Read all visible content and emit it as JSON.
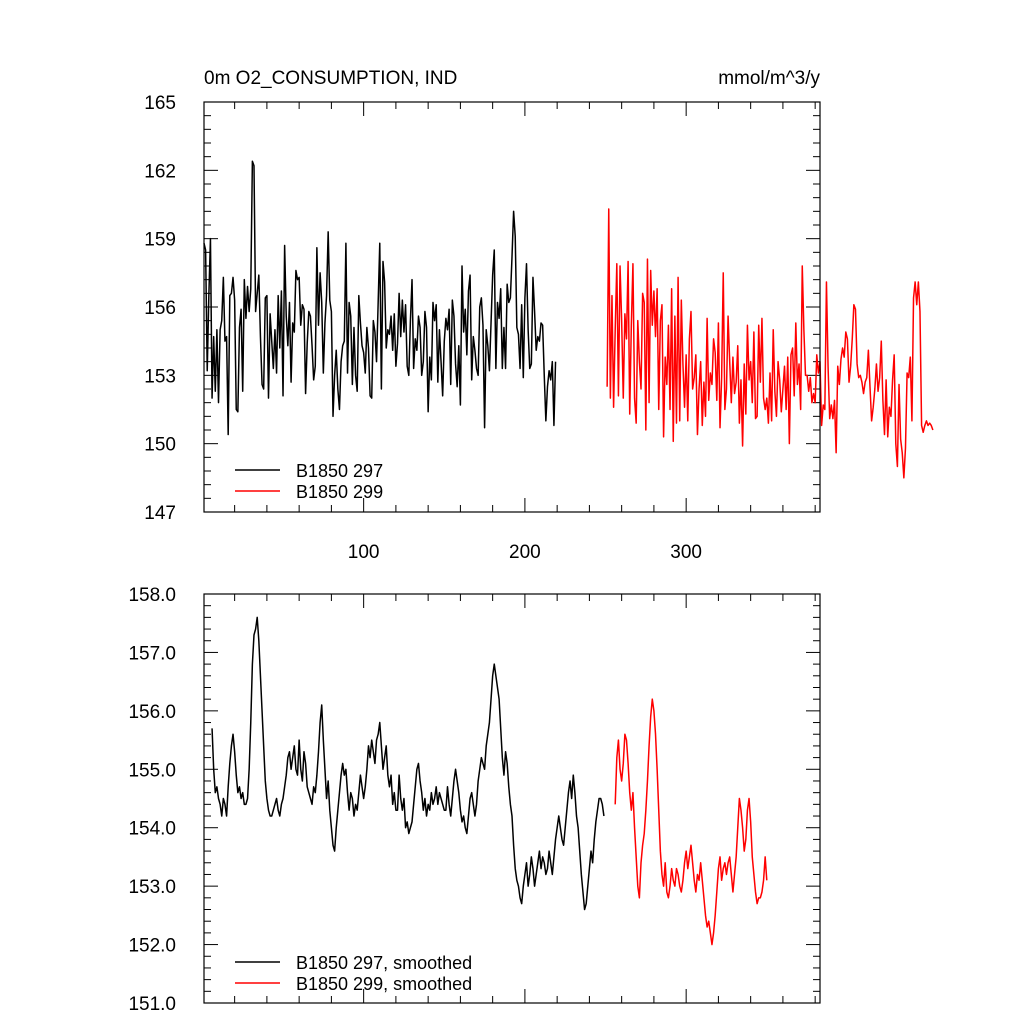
{
  "chart_data": [
    {
      "type": "line",
      "title": "0m O2_CONSUMPTION, IND",
      "units": "mmol/m^3/y",
      "xlim": [
        1,
        383
      ],
      "ylim": [
        147,
        165
      ],
      "x_ticks": [
        100,
        200,
        300
      ],
      "y_ticks": [
        147,
        150,
        153,
        156,
        159,
        162,
        165
      ],
      "y_tick_labels": [
        "147",
        "150",
        "153",
        "156",
        "159",
        "162",
        "165"
      ],
      "grid": false,
      "legend_position": "bottom-left",
      "series": [
        {
          "name": "B1850 297",
          "color": "#000000",
          "x_start": 1,
          "values": [
            158.8,
            158.5,
            153.2,
            156.5,
            159.0,
            152.0,
            154.7,
            152.3,
            155.0,
            151.8,
            155.0,
            155.4,
            157.3,
            154.5,
            154.7,
            150.4,
            156.5,
            156.6,
            157.3,
            156.3,
            151.5,
            151.4,
            155.1,
            155.9,
            152.3,
            157.2,
            155.5,
            156.9,
            155.8,
            156.8,
            162.4,
            162.2,
            155.8,
            156.6,
            157.4,
            154.7,
            152.6,
            152.4,
            156.4,
            156.5,
            152.0,
            155.7,
            154.5,
            153.3,
            155.0,
            153.1,
            156.5,
            154.2,
            156.7,
            152.1,
            158.7,
            155.6,
            154.3,
            156.2,
            152.7,
            155.3,
            154.9,
            157.6,
            157.2,
            157.3,
            155.2,
            156.1,
            155.9,
            152.2,
            154.4,
            155.8,
            155.6,
            154.3,
            152.8,
            153.4,
            158.6,
            155.2,
            157.5,
            156.2,
            153.1,
            155.3,
            156.5,
            159.3,
            156.3,
            155.8,
            151.2,
            153.0,
            154.1,
            152.4,
            151.5,
            153.6,
            154.3,
            154.5,
            158.8,
            153.1,
            156.2,
            155.6,
            152.6,
            155.1,
            153.0,
            152.3,
            156.5,
            155.3,
            154.3,
            154.0,
            153.1,
            155.1,
            154.2,
            152.1,
            152.0,
            155.4,
            154.9,
            153.6,
            156.2,
            158.8,
            152.4,
            158.0,
            157.1,
            154.2,
            155.0,
            154.8,
            155.6,
            154.1,
            155.7,
            153.4,
            154.4,
            156.6,
            154.7,
            156.3,
            154.9,
            156.1,
            153.4,
            153.0,
            155.4,
            157.2,
            153.3,
            154.6,
            154.1,
            155.6,
            155.1,
            153.0,
            153.6,
            155.8,
            155.1,
            151.4,
            153.8,
            152.8,
            156.2,
            155.4,
            156.1,
            152.7,
            155.0,
            153.6,
            152.1,
            154.5,
            155.5,
            155.0,
            155.9,
            152.6,
            156.3,
            155.6,
            153.5,
            152.5,
            154.3,
            151.7,
            157.8,
            154.9,
            155.9,
            153.9,
            156.7,
            157.4,
            152.8,
            154.7,
            154.1,
            153.3,
            153.0,
            156.0,
            156.4,
            155.2,
            150.7,
            155.0,
            154.3,
            153.2,
            155.3,
            157.4,
            158.5,
            153.3,
            156.2,
            155.5,
            156.8,
            153.3,
            155.1,
            153.3,
            157.0,
            156.2,
            156.4,
            158.2,
            160.2,
            159.1,
            155.1,
            154.8,
            153.3,
            156.1,
            152.9,
            156.4,
            157.9,
            155.0,
            153.3,
            153.5,
            157.3,
            155.8,
            154.1,
            154.7,
            154.5,
            155.3,
            155.2,
            153.0,
            151.0,
            152.5,
            153.2,
            152.8,
            153.6,
            150.8,
            153.6
          ],
          "scattered_points_approx": true
        },
        {
          "name": "B1850 299",
          "color": "#ff0000",
          "x_start": 251,
          "values": [
            152.5,
            160.3,
            152.0,
            156.5,
            151.6,
            155.0,
            157.9,
            152.1,
            157.8,
            155.4,
            152.0,
            155.7,
            154.6,
            158.0,
            151.3,
            155.2,
            157.9,
            152.0,
            150.9,
            155.4,
            153.6,
            152.4,
            156.6,
            156.2,
            150.6,
            158.1,
            151.8,
            157.6,
            155.2,
            156.7,
            154.7,
            156.8,
            151.5,
            155.4,
            156.1,
            150.3,
            153.8,
            152.6,
            155.2,
            151.5,
            156.8,
            150.1,
            155.6,
            150.9,
            157.3,
            151.0,
            156.3,
            153.5,
            151.6,
            153.9,
            151.0,
            154.6,
            155.8,
            152.4,
            152.9,
            153.9,
            150.4,
            152.4,
            153.6,
            150.8,
            152.7,
            151.2,
            155.5,
            151.9,
            153.1,
            152.6,
            154.6,
            154.0,
            151.9,
            155.3,
            150.7,
            152.9,
            157.5,
            151.5,
            152.4,
            155.6,
            153.6,
            151.8,
            153.8,
            152.2,
            152.7,
            154.3,
            150.9,
            152.8,
            149.9,
            153.5,
            151.3,
            155.2,
            152.8,
            153.6,
            151.8,
            154.9,
            151.1,
            151.2,
            155.2,
            152.7,
            155.5,
            152.0,
            151.5,
            152.0,
            150.9,
            153.1,
            151.0,
            155.0,
            152.3,
            151.2,
            153.6,
            152.8,
            151.4,
            152.4,
            153.4,
            151.5,
            153.8,
            150.0,
            153.9,
            154.2,
            152.1,
            155.3,
            152.6,
            153.5,
            151.5,
            157.8,
            155.0,
            153.0,
            153.0,
            152.3,
            152.9,
            151.8,
            152.2,
            151.8,
            153.9,
            153.1,
            153.6,
            150.8,
            151.7,
            151.5,
            157.1,
            153.4,
            151.1,
            151.7,
            151.1,
            151.9,
            149.6,
            153.4,
            152.6,
            153.7,
            154.2,
            153.8,
            154.9,
            154.6,
            152.7,
            153.4,
            154.6,
            156.1,
            155.9,
            153.5,
            152.9,
            153.0,
            152.7,
            152.2,
            152.7,
            152.9,
            154.1,
            152.5,
            151.0,
            151.6,
            152.4,
            153.5,
            152.3,
            152.9,
            154.5,
            151.9,
            150.4,
            152.8,
            150.3,
            151.6,
            151.2,
            152.8,
            153.9,
            150.0,
            149.0,
            152.6,
            150.2,
            149.6,
            148.5,
            149.8,
            153.1,
            152.9,
            153.8,
            151.0,
            156.4,
            157.1,
            156.1,
            157.1,
            155.8,
            150.8,
            150.5,
            150.8,
            151.0,
            150.8,
            150.9,
            150.8,
            150.6
          ]
        }
      ],
      "legend": [
        "B1850 297",
        "B1850 299"
      ]
    },
    {
      "type": "line",
      "title": "",
      "xlim": [
        1,
        383
      ],
      "ylim": [
        151.0,
        158.0
      ],
      "x_ticks": [
        100,
        200,
        300
      ],
      "y_ticks": [
        151.0,
        152.0,
        153.0,
        154.0,
        155.0,
        156.0,
        157.0,
        158.0
      ],
      "y_tick_labels": [
        "151.0",
        "152.0",
        "153.0",
        "154.0",
        "155.0",
        "156.0",
        "157.0",
        "158.0"
      ],
      "grid": false,
      "legend_position": "bottom-left",
      "series": [
        {
          "name": "B1850 297, smoothed",
          "color": "#000000",
          "x_start": 6,
          "values": [
            155.7,
            155.0,
            154.6,
            154.7,
            154.5,
            154.4,
            154.2,
            154.5,
            154.4,
            154.2,
            154.7,
            155.1,
            155.4,
            155.6,
            155.3,
            154.9,
            154.6,
            154.7,
            154.5,
            154.6,
            154.4,
            154.4,
            154.5,
            155.0,
            155.8,
            156.8,
            157.3,
            157.4,
            157.6,
            157.2,
            156.6,
            156.0,
            155.4,
            154.8,
            154.5,
            154.3,
            154.2,
            154.2,
            154.3,
            154.4,
            154.5,
            154.3,
            154.2,
            154.4,
            154.5,
            154.7,
            154.9,
            155.2,
            155.3,
            155.0,
            155.2,
            155.4,
            155.0,
            154.9,
            155.5,
            155.0,
            154.8,
            155.3,
            155.1,
            154.7,
            154.6,
            154.5,
            154.4,
            154.7,
            154.6,
            154.9,
            155.3,
            155.8,
            156.1,
            155.5,
            155.0,
            154.5,
            154.8,
            154.3,
            154.0,
            153.7,
            153.6,
            154.0,
            154.3,
            154.6,
            154.9,
            155.1,
            154.9,
            155.0,
            154.6,
            154.3,
            154.6,
            154.5,
            154.2,
            154.4,
            154.3,
            154.6,
            154.9,
            154.7,
            154.5,
            154.7,
            155.0,
            155.4,
            155.2,
            155.5,
            155.3,
            155.1,
            155.5,
            155.6,
            155.8,
            155.4,
            155.0,
            155.2,
            155.4,
            154.9,
            154.7,
            154.9,
            154.4,
            154.6,
            154.3,
            154.3,
            154.9,
            154.5,
            154.3,
            154.5,
            154.0,
            154.1,
            153.9,
            154.0,
            154.1,
            154.4,
            154.7,
            155.0,
            155.1,
            154.8,
            154.6,
            154.3,
            154.5,
            154.2,
            154.4,
            154.3,
            154.6,
            154.4,
            154.5,
            154.7,
            154.4,
            154.6,
            154.5,
            154.4,
            154.3,
            154.3,
            154.7,
            154.4,
            154.2,
            154.5,
            154.8,
            155.0,
            154.8,
            154.6,
            154.3,
            154.1,
            154.2,
            154.0,
            153.9,
            154.2,
            154.5,
            154.6,
            154.4,
            154.2,
            154.4,
            154.8,
            155.0,
            155.2,
            155.1,
            155.0,
            155.4,
            155.6,
            155.8,
            156.2,
            156.6,
            156.8,
            156.6,
            156.4,
            156.2,
            155.7,
            155.2,
            154.9,
            155.3,
            155.1,
            154.7,
            154.4,
            154.2,
            153.7,
            153.3,
            153.1,
            153.0,
            152.8,
            152.7,
            153.0,
            153.2,
            153.4,
            153.0,
            153.2,
            153.5,
            153.3,
            153.0,
            153.2,
            153.4,
            153.6,
            153.3,
            153.5,
            153.4,
            153.2,
            153.3,
            153.6,
            153.4,
            153.2,
            153.5,
            153.8,
            154.0,
            154.2,
            154.0,
            153.8,
            153.7,
            154.0,
            154.3,
            154.6,
            154.8,
            154.5,
            154.9,
            154.6,
            154.2,
            154.0,
            153.6,
            153.2,
            152.9,
            152.6,
            152.7,
            153.0,
            153.3,
            153.6,
            153.4,
            153.8,
            154.1,
            154.3,
            154.5,
            154.5,
            154.4,
            154.2
          ]
        },
        {
          "name": "B1850 299, smoothed",
          "color": "#ff0000",
          "x_start": 256,
          "values": [
            154.4,
            155.2,
            155.5,
            155.0,
            154.8,
            155.1,
            155.6,
            155.5,
            155.1,
            154.6,
            154.3,
            154.6,
            154.0,
            153.5,
            153.0,
            152.8,
            153.4,
            153.7,
            153.9,
            154.3,
            154.8,
            155.4,
            155.9,
            156.2,
            156.0,
            155.6,
            155.0,
            154.3,
            153.6,
            153.2,
            153.0,
            153.4,
            152.9,
            152.8,
            153.0,
            153.3,
            153.1,
            153.0,
            153.3,
            153.2,
            153.0,
            152.9,
            153.1,
            153.4,
            153.6,
            153.3,
            153.5,
            153.7,
            153.4,
            153.1,
            152.9,
            153.2,
            153.1,
            153.4,
            153.1,
            152.8,
            152.5,
            152.3,
            152.4,
            152.2,
            152.0,
            152.2,
            152.5,
            152.9,
            153.3,
            153.5,
            153.1,
            153.3,
            153.4,
            153.2,
            153.4,
            153.5,
            153.2,
            152.9,
            153.2,
            153.5,
            154.0,
            154.5,
            154.3,
            154.0,
            153.6,
            153.8,
            154.3,
            154.5,
            154.1,
            153.5,
            153.2,
            152.9,
            152.7,
            152.8,
            152.8,
            152.9,
            153.1,
            153.5,
            153.1
          ]
        }
      ],
      "legend": [
        "B1850 297, smoothed",
        "B1850 299, smoothed"
      ]
    }
  ]
}
